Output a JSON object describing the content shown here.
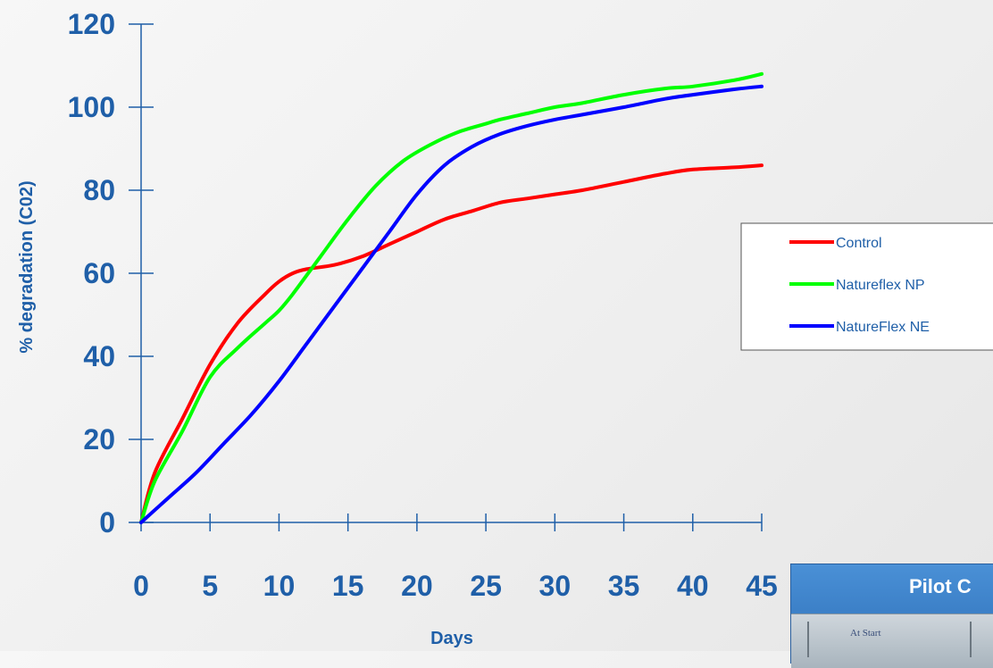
{
  "chart_data": {
    "type": "line",
    "xlabel": "Days",
    "ylabel": "% degradation (C02)",
    "xlim": [
      0,
      45
    ],
    "ylim": [
      0,
      120
    ],
    "xticks": [
      "0",
      "5",
      "10",
      "15",
      "20",
      "25",
      "30",
      "35",
      "40",
      "45"
    ],
    "yticks": [
      "0",
      "20",
      "40",
      "60",
      "80",
      "100",
      "120"
    ],
    "grid": false,
    "legend_position": "right",
    "series": [
      {
        "name": "Control",
        "color": "#ff0000",
        "x": [
          0,
          1,
          3,
          5,
          7,
          9,
          10,
          11,
          12,
          14,
          16,
          18,
          20,
          22,
          24,
          26,
          28,
          30,
          32,
          35,
          38,
          40,
          43,
          45
        ],
        "y": [
          0,
          12,
          25,
          38,
          48,
          55,
          58,
          60,
          61,
          62,
          64,
          67,
          70,
          73,
          75,
          77,
          78,
          79,
          80,
          82,
          84,
          85,
          85.5,
          86
        ]
      },
      {
        "name": "Natureflex NP",
        "color": "#00ff00",
        "x": [
          0,
          1,
          3,
          5,
          7,
          9,
          10,
          11,
          13,
          15,
          17,
          19,
          21,
          23,
          25,
          26,
          28,
          30,
          32,
          35,
          38,
          40,
          43,
          45
        ],
        "y": [
          0,
          10,
          22,
          35,
          42,
          48,
          51,
          55,
          64,
          73,
          81,
          87,
          91,
          94,
          96,
          97,
          98.5,
          100,
          101,
          103,
          104.5,
          105,
          106.5,
          108
        ]
      },
      {
        "name": "NatureFlex NE",
        "color": "#0000ff",
        "x": [
          0,
          2,
          4,
          6,
          8,
          10,
          12,
          14,
          16,
          18,
          20,
          22,
          24,
          26,
          28,
          30,
          32,
          35,
          38,
          40,
          43,
          45
        ],
        "y": [
          0,
          6,
          12,
          19,
          26,
          34,
          43,
          52,
          61,
          70,
          79,
          86,
          90.5,
          93.5,
          95.5,
          97,
          98.2,
          100,
          102,
          103,
          104.3,
          105
        ]
      }
    ]
  },
  "overlay": {
    "title": "Pilot C",
    "tab_label": "At Start"
  }
}
